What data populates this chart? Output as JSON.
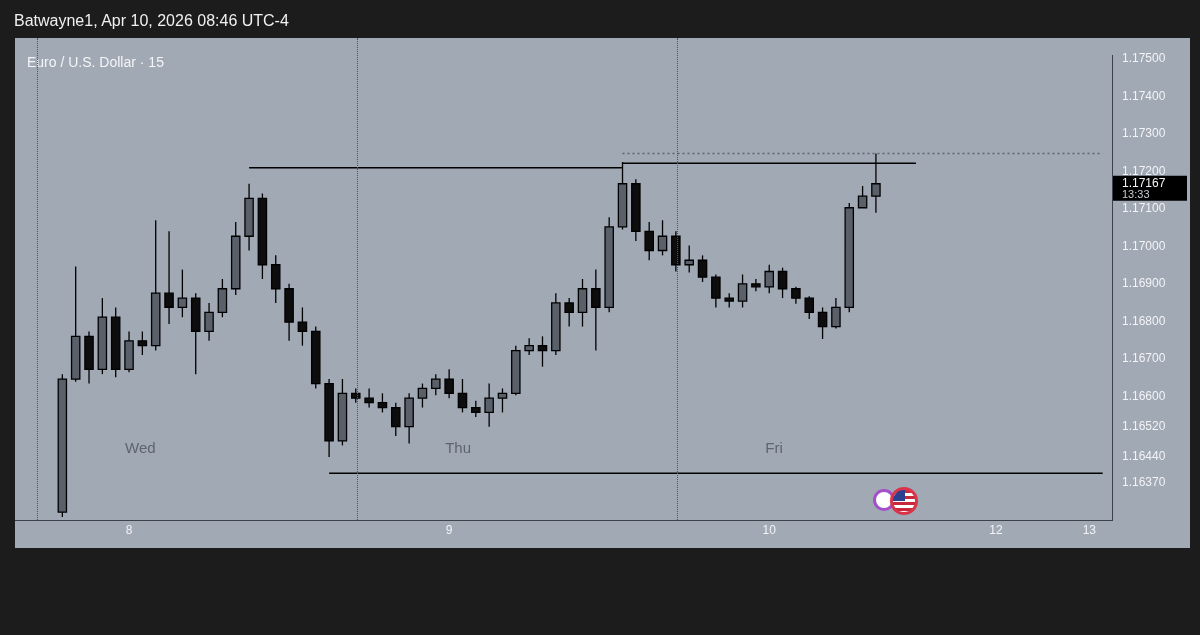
{
  "chart_data": {
    "type": "candlestick",
    "title": "Euro / U.S. Dollar · 15",
    "subtitle": "Batwayne1, Apr 10, 2026 08:46 UTC-4",
    "categories": [
      null,
      null,
      null,
      null,
      null,
      null,
      null,
      null,
      "8",
      null,
      null,
      null,
      null,
      null,
      null,
      null,
      null,
      null,
      null,
      null,
      null,
      null,
      null,
      null,
      null,
      null,
      null,
      null,
      null,
      null,
      null,
      null,
      "9",
      null,
      null,
      null,
      null,
      null,
      null,
      null,
      null,
      null,
      null,
      null,
      null,
      null,
      null,
      null,
      null,
      null,
      null,
      null,
      null,
      null,
      null,
      null,
      "10",
      null,
      null,
      null,
      null,
      null,
      null,
      null,
      null,
      null,
      null,
      null,
      null,
      null,
      null,
      null,
      null,
      "12",
      null,
      null,
      null,
      null,
      null,
      null,
      "13",
      null
    ],
    "ohlc": [
      null,
      null,
      null,
      [
        1.16291,
        1.16659,
        1.16278,
        1.16646
      ],
      [
        1.16646,
        1.16946,
        1.16639,
        1.1676
      ],
      [
        1.1676,
        1.16773,
        1.16634,
        1.16672
      ],
      [
        1.16672,
        1.16862,
        1.16659,
        1.16811
      ],
      [
        1.16811,
        1.16837,
        1.16651,
        1.16672
      ],
      [
        1.16672,
        1.16773,
        1.16664,
        1.16748
      ],
      [
        1.16748,
        1.16773,
        1.1671,
        1.16735
      ],
      [
        1.16735,
        1.1707,
        1.16722,
        1.16875
      ],
      [
        1.16875,
        1.1704,
        1.16793,
        1.16837
      ],
      [
        1.16837,
        1.16938,
        1.16811,
        1.16862
      ],
      [
        1.16862,
        1.16875,
        1.16659,
        1.16773
      ],
      [
        1.16773,
        1.16849,
        1.16748,
        1.16824
      ],
      [
        1.16824,
        1.16913,
        1.16811,
        1.16887
      ],
      [
        1.16887,
        1.17065,
        1.1687,
        1.17027
      ],
      [
        1.17027,
        1.17167,
        1.16989,
        1.17128
      ],
      [
        1.17128,
        1.17141,
        1.16913,
        1.16951
      ],
      [
        1.16951,
        1.16976,
        1.16849,
        1.16887
      ],
      [
        1.16887,
        1.169,
        1.16748,
        1.16798
      ],
      [
        1.16798,
        1.16837,
        1.16735,
        1.16773
      ],
      [
        1.16773,
        1.16786,
        1.16621,
        1.16634
      ],
      [
        1.16634,
        1.16646,
        1.16438,
        1.16481
      ],
      [
        1.16481,
        1.16646,
        1.16469,
        1.16608
      ],
      [
        1.16608,
        1.16621,
        1.16583,
        1.16595
      ],
      [
        1.16595,
        1.16621,
        1.1657,
        1.16583
      ],
      [
        1.16583,
        1.16608,
        1.16557,
        1.1657
      ],
      [
        1.1657,
        1.16583,
        1.16494,
        1.16519
      ],
      [
        1.16519,
        1.16608,
        1.16474,
        1.16595
      ],
      [
        1.16595,
        1.16634,
        1.1657,
        1.16621
      ],
      [
        1.16621,
        1.16659,
        1.16603,
        1.16646
      ],
      [
        1.16646,
        1.16672,
        1.16595,
        1.16608
      ],
      [
        1.16608,
        1.16646,
        1.16557,
        1.1657
      ],
      [
        1.1657,
        1.16588,
        1.16545,
        1.16557
      ],
      [
        1.16557,
        1.16634,
        1.16519,
        1.16595
      ],
      [
        1.16595,
        1.16621,
        1.16557,
        1.16608
      ],
      [
        1.16608,
        1.16735,
        1.16603,
        1.16722
      ],
      [
        1.16722,
        1.16755,
        1.1671,
        1.16735
      ],
      [
        1.16735,
        1.1676,
        1.16679,
        1.16722
      ],
      [
        1.16722,
        1.16875,
        1.1671,
        1.16849
      ],
      [
        1.16849,
        1.16862,
        1.16786,
        1.16824
      ],
      [
        1.16824,
        1.16913,
        1.16786,
        1.16887
      ],
      [
        1.16887,
        1.16938,
        1.16722,
        1.16837
      ],
      [
        1.16837,
        1.17078,
        1.16824,
        1.17052
      ],
      [
        1.17052,
        1.17225,
        1.17045,
        1.17167
      ],
      [
        1.17167,
        1.17179,
        1.17014,
        1.1704
      ],
      [
        1.1704,
        1.17065,
        1.16963,
        1.16989
      ],
      [
        1.16989,
        1.1707,
        1.16976,
        1.17027
      ],
      [
        1.17027,
        1.1704,
        1.16933,
        1.16951
      ],
      [
        1.16951,
        1.17002,
        1.1693,
        1.16963
      ],
      [
        1.16963,
        1.16976,
        1.16905,
        1.16918
      ],
      [
        1.16918,
        1.16925,
        1.16837,
        1.16862
      ],
      [
        1.16862,
        1.16875,
        1.16837,
        1.16854
      ],
      [
        1.16854,
        1.16925,
        1.16837,
        1.169
      ],
      [
        1.169,
        1.16913,
        1.1688,
        1.16892
      ],
      [
        1.16892,
        1.16951,
        1.16875,
        1.16933
      ],
      [
        1.16933,
        1.16943,
        1.16862,
        1.16887
      ],
      [
        1.16887,
        1.16892,
        1.16847,
        1.16862
      ],
      [
        1.16862,
        1.16867,
        1.16806,
        1.16824
      ],
      [
        1.16824,
        1.16837,
        1.16753,
        1.16786
      ],
      [
        1.16786,
        1.16862,
        1.16781,
        1.16837
      ],
      [
        1.16837,
        1.17116,
        1.16824,
        1.17103
      ],
      [
        1.17103,
        1.17161,
        1.17103,
        1.17134
      ],
      [
        1.17134,
        1.17248,
        1.1709,
        1.17167
      ],
      null,
      null,
      null,
      null,
      null,
      null,
      null,
      null,
      null,
      null,
      null,
      null,
      null,
      null,
      null,
      null,
      null
    ],
    "colors": [
      null,
      null,
      null,
      "#596069",
      "#596069",
      "#0d0d0d",
      "#596069",
      "#0d0d0d",
      "#596069",
      "#0d0d0d",
      "#596069",
      "#0d0d0d",
      "#596069",
      "#0d0d0d",
      "#596069",
      "#596069",
      "#596069",
      "#596069",
      "#0d0d0d",
      "#0d0d0d",
      "#0d0d0d",
      "#0d0d0d",
      "#0d0d0d",
      "#0d0d0d",
      "#596069",
      "#0d0d0d",
      "#0d0d0d",
      "#0d0d0d",
      "#0d0d0d",
      "#596069",
      "#596069",
      "#596069",
      "#0d0d0d",
      "#0d0d0d",
      "#0d0d0d",
      "#596069",
      "#596069",
      "#596069",
      "#596069",
      "#0d0d0d",
      "#596069",
      "#0d0d0d",
      "#596069",
      "#0d0d0d",
      "#596069",
      "#596069",
      "#0d0d0d",
      "#0d0d0d",
      "#596069",
      "#0d0d0d",
      "#596069",
      "#0d0d0d",
      "#0d0d0d",
      "#0d0d0d",
      "#596069",
      "#0d0d0d",
      "#596069",
      "#0d0d0d",
      "#0d0d0d",
      "#0d0d0d",
      "#0d0d0d",
      "#596069",
      "#596069",
      "#596069",
      "#596069",
      null,
      null,
      null,
      null,
      null,
      null,
      null,
      null,
      null,
      null,
      null,
      null,
      null,
      null,
      null,
      null,
      null
    ],
    "series": [
      {
        "type": "line",
        "color": "#000000",
        "values": [
          null,
          null,
          null,
          null,
          null,
          null,
          null,
          null,
          null,
          null,
          null,
          null,
          null,
          null,
          null,
          null,
          null,
          1.1721,
          1.1721,
          1.1721,
          1.1721,
          1.1721,
          1.1721,
          1.1721,
          1.1721,
          1.1721,
          1.1721,
          1.1721,
          1.1721,
          1.1721,
          1.1721,
          1.1721,
          1.1721,
          1.1721,
          1.1721,
          1.1721,
          1.1721,
          1.1721,
          1.1721,
          1.1721,
          1.1721,
          1.1721,
          1.1721,
          1.1721,
          1.1721,
          1.1721,
          null,
          null,
          null,
          null,
          null,
          null,
          null,
          null,
          null,
          null,
          null,
          null,
          null,
          null,
          null,
          null,
          null,
          null,
          null,
          null,
          null,
          null,
          null,
          null,
          null,
          null,
          null,
          null,
          null,
          null,
          null,
          null,
          null,
          null,
          null,
          null
        ]
      },
      {
        "type": "line",
        "color": "#000000",
        "values": [
          null,
          null,
          null,
          null,
          null,
          null,
          null,
          null,
          null,
          null,
          null,
          null,
          null,
          null,
          null,
          null,
          null,
          null,
          null,
          null,
          null,
          null,
          null,
          null,
          null,
          null,
          null,
          null,
          null,
          null,
          null,
          null,
          null,
          null,
          null,
          null,
          null,
          null,
          null,
          null,
          null,
          null,
          null,
          null,
          null,
          1.17222,
          1.17222,
          1.17222,
          1.17222,
          1.17222,
          1.17222,
          1.17222,
          1.17222,
          1.17222,
          1.17222,
          1.17222,
          1.17222,
          1.17222,
          1.17222,
          1.17222,
          1.17222,
          1.17222,
          1.17222,
          1.17222,
          1.17222,
          1.17222,
          1.17222,
          1.17222,
          null,
          null,
          null,
          null,
          null,
          null,
          null,
          null,
          null,
          null,
          null,
          null,
          null,
          null
        ]
      },
      {
        "type": "line",
        "color": "#000000",
        "values": [
          null,
          null,
          null,
          null,
          null,
          null,
          null,
          null,
          null,
          null,
          null,
          null,
          null,
          null,
          null,
          null,
          null,
          null,
          null,
          null,
          null,
          null,
          null,
          1.16395,
          1.16395,
          1.16395,
          1.16395,
          1.16395,
          1.16395,
          1.16395,
          1.16395,
          1.16395,
          1.16395,
          1.16395,
          1.16395,
          1.16395,
          1.16395,
          1.16395,
          1.16395,
          1.16395,
          1.16395,
          1.16395,
          1.16395,
          1.16395,
          1.16395,
          1.16395,
          1.16395,
          1.16395,
          1.16395,
          1.16395,
          1.16395,
          1.16395,
          1.16395,
          1.16395,
          1.16395,
          1.16395,
          1.16395,
          1.16395,
          1.16395,
          1.16395,
          1.16395,
          1.16395,
          1.16395,
          1.16395,
          1.16395,
          1.16395,
          1.16395,
          1.16395,
          1.16395,
          1.16395,
          1.16395,
          1.16395,
          1.16395,
          1.16395,
          1.16395,
          1.16395,
          1.16395,
          1.16395,
          1.16395,
          1.16395,
          1.16395,
          1.16395
        ]
      },
      {
        "type": "line",
        "color": "#5b6472",
        "line_style": "dotted",
        "values": [
          null,
          null,
          null,
          null,
          null,
          null,
          null,
          null,
          null,
          null,
          null,
          null,
          null,
          null,
          null,
          null,
          null,
          null,
          null,
          null,
          null,
          null,
          null,
          null,
          null,
          null,
          null,
          null,
          null,
          null,
          null,
          null,
          null,
          null,
          null,
          null,
          null,
          null,
          null,
          null,
          null,
          null,
          null,
          null,
          null,
          1.17248,
          1.17248,
          1.17248,
          1.17248,
          1.17248,
          1.17248,
          1.17248,
          1.17248,
          1.17248,
          1.17248,
          1.17248,
          1.17248,
          1.17248,
          1.17248,
          1.17248,
          1.17248,
          1.17248,
          1.17248,
          1.17248,
          1.17248,
          1.17248,
          1.17248,
          1.17248,
          1.17248,
          1.17248,
          1.17248,
          1.17248,
          1.17248,
          1.17248,
          1.17248,
          1.17248,
          1.17248,
          1.17248,
          1.17248,
          1.17248,
          1.17248,
          1.17248
        ]
      }
    ],
    "annotations": [
      "Wed",
      "Thu",
      "Fri",
      "13:33"
    ],
    "ylim": [
      1.1627,
      1.1751
    ],
    "yticks": [
      {
        "value": 1.1637,
        "label": "1.16370"
      },
      {
        "value": 1.1644,
        "label": "1.16440"
      },
      {
        "value": 1.1652,
        "label": "1.16520"
      },
      {
        "value": 1.166,
        "label": "1.16600"
      },
      {
        "value": 1.167,
        "label": "1.16700"
      },
      {
        "value": 1.168,
        "label": "1.16800"
      },
      {
        "value": 1.169,
        "label": "1.16900"
      },
      {
        "value": 1.17,
        "label": "1.17000"
      },
      {
        "value": 1.171,
        "label": "1.17100"
      },
      1.17167,
      {
        "value": 1.172,
        "label": "1.17200"
      },
      {
        "value": 1.173,
        "label": "1.17300"
      },
      {
        "value": 1.174,
        "label": "1.17400"
      },
      {
        "value": 1.175,
        "label": "1.17500"
      }
    ],
    "grid": false,
    "legend": false
  }
}
